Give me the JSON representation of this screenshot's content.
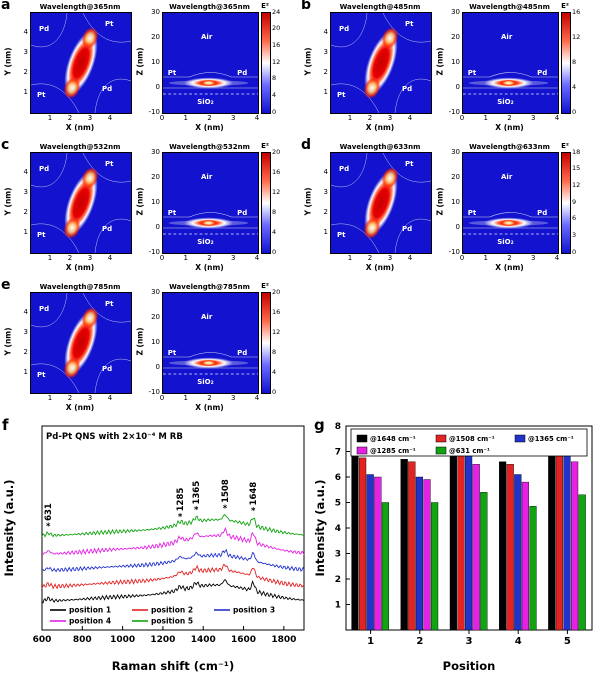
{
  "colors": {
    "field_blue": "#1212cf",
    "hot_red": "#c60000",
    "series_black": "#000000",
    "series_red": "#e32222",
    "series_blue": "#2233cc",
    "series_magenta": "#e322e3",
    "series_green": "#11a311"
  },
  "letters": {
    "f": "f",
    "g": "g"
  },
  "sim_panels": [
    {
      "letter": "a",
      "xy": {
        "title": "Wavelength@365nm",
        "xlabel": "X (nm)",
        "ylabel": "Y (nm)",
        "xticks": [
          "1",
          "2",
          "3",
          "4"
        ],
        "yticks": [
          "1",
          "2",
          "3",
          "4"
        ],
        "region_labels": {
          "tl": "Pd",
          "tr": "Pt",
          "bl": "Pt",
          "br": "Pd"
        }
      },
      "xz": {
        "title": "Wavelength@365nm",
        "xlabel": "X (nm)",
        "ylabel": "Z (nm)",
        "xticks": [
          "0",
          "1",
          "2",
          "3",
          "4"
        ],
        "yticks": [
          "30",
          "20",
          "10",
          "0",
          "-10"
        ],
        "region_labels": {
          "air": "Air",
          "left": "Pt",
          "right": "Pd",
          "substrate": "SiO₂"
        }
      },
      "colorbar": {
        "label": "E²",
        "ticks": [
          "24",
          "20",
          "16",
          "12",
          "8",
          "4",
          "0"
        ]
      }
    },
    {
      "letter": "b",
      "xy": {
        "title": "Wavelength@485nm",
        "xlabel": "X (nm)",
        "ylabel": "Y (nm)",
        "xticks": [
          "1",
          "2",
          "3",
          "4"
        ],
        "yticks": [
          "1",
          "2",
          "3",
          "4"
        ],
        "region_labels": {
          "tl": "Pd",
          "tr": "Pt",
          "bl": "Pt",
          "br": "Pd"
        }
      },
      "xz": {
        "title": "Wavelength@485nm",
        "xlabel": "X (nm)",
        "ylabel": "Z (nm)",
        "xticks": [
          "0",
          "1",
          "2",
          "3",
          "4"
        ],
        "yticks": [
          "30",
          "20",
          "10",
          "0",
          "-10"
        ],
        "region_labels": {
          "air": "Air",
          "left": "Pt",
          "right": "Pd",
          "substrate": "SiO₂"
        }
      },
      "colorbar": {
        "label": "E²",
        "ticks": [
          "16",
          "12",
          "8",
          "4",
          "0"
        ]
      }
    },
    {
      "letter": "c",
      "xy": {
        "title": "Wavelength@532nm",
        "xlabel": "X (nm)",
        "ylabel": "Y (nm)",
        "xticks": [
          "1",
          "2",
          "3",
          "4"
        ],
        "yticks": [
          "1",
          "2",
          "3",
          "4"
        ],
        "region_labels": {
          "tl": "Pd",
          "tr": "Pt",
          "bl": "Pt",
          "br": "Pd"
        }
      },
      "xz": {
        "title": "Wavelength@532nm",
        "xlabel": "X (nm)",
        "ylabel": "Z (nm)",
        "xticks": [
          "0",
          "1",
          "2",
          "3",
          "4"
        ],
        "yticks": [
          "30",
          "20",
          "10",
          "0",
          "-10"
        ],
        "region_labels": {
          "air": "Air",
          "left": "Pt",
          "right": "Pd",
          "substrate": "SiO₂"
        }
      },
      "colorbar": {
        "label": "E²",
        "ticks": [
          "20",
          "16",
          "12",
          "8",
          "4",
          "0"
        ]
      }
    },
    {
      "letter": "d",
      "xy": {
        "title": "Wavelength@633nm",
        "xlabel": "X (nm)",
        "ylabel": "Y (nm)",
        "xticks": [
          "1",
          "2",
          "3",
          "4"
        ],
        "yticks": [
          "1",
          "2",
          "3",
          "4"
        ],
        "region_labels": {
          "tl": "Pd",
          "tr": "Pt",
          "bl": "Pt",
          "br": "Pd"
        }
      },
      "xz": {
        "title": "Wavelength@633nm",
        "xlabel": "X (nm)",
        "ylabel": "Z (nm)",
        "xticks": [
          "0",
          "1",
          "2",
          "3",
          "4"
        ],
        "yticks": [
          "30",
          "20",
          "10",
          "0",
          "-10"
        ],
        "region_labels": {
          "air": "Air",
          "left": "Pt",
          "right": "Pd",
          "substrate": "SiO₂"
        }
      },
      "colorbar": {
        "label": "E²",
        "ticks": [
          "18",
          "15",
          "12",
          "9",
          "6",
          "3",
          "0"
        ]
      }
    },
    {
      "letter": "e",
      "xy": {
        "title": "Wavelength@785nm",
        "xlabel": "X (nm)",
        "ylabel": "Y (nm)",
        "xticks": [
          "1",
          "2",
          "3",
          "4"
        ],
        "yticks": [
          "1",
          "2",
          "3",
          "4"
        ],
        "region_labels": {
          "tl": "Pd",
          "tr": "Pt",
          "bl": "Pt",
          "br": "Pd"
        }
      },
      "xz": {
        "title": "Wavelength@785nm",
        "xlabel": "X (nm)",
        "ylabel": "Z (nm)",
        "xticks": [
          "0",
          "1",
          "2",
          "3",
          "4"
        ],
        "yticks": [
          "30",
          "20",
          "10",
          "0",
          "-10"
        ],
        "region_labels": {
          "air": "Air",
          "left": "Pt",
          "right": "Pd",
          "substrate": "SiO₂"
        }
      },
      "colorbar": {
        "label": "E²",
        "ticks": [
          "20",
          "16",
          "12",
          "8",
          "4",
          "0"
        ]
      }
    }
  ],
  "chart_data": [
    {
      "type": "line",
      "title": "Pd-Pt QNS with 2×10⁻⁴ M RB",
      "xlabel": "Raman shift (cm⁻¹)",
      "ylabel": "Intensity (a.u.)",
      "xlim": [
        600,
        1900
      ],
      "xticks": [
        600,
        800,
        1000,
        1200,
        1400,
        1600,
        1800
      ],
      "peak_positions": [
        631,
        1285,
        1365,
        1508,
        1648
      ],
      "peak_labels": [
        "631",
        "1285",
        "1365",
        "1508",
        "1648"
      ],
      "legend_position": "bottom-left",
      "series": [
        {
          "name": "position 1",
          "color": "#000000",
          "offset": 0.14,
          "scale": 1.0
        },
        {
          "name": "position 2",
          "color": "#e32222",
          "offset": 0.21,
          "scale": 1.05
        },
        {
          "name": "position 3",
          "color": "#2233cc",
          "offset": 0.29,
          "scale": 0.95
        },
        {
          "name": "position 4",
          "color": "#e322e3",
          "offset": 0.37,
          "scale": 1.15
        },
        {
          "name": "position 5",
          "color": "#11a311",
          "offset": 0.46,
          "scale": 1.0
        }
      ]
    },
    {
      "type": "bar",
      "title": "",
      "xlabel": "Position",
      "ylabel": "Intensity (a.u.)",
      "categories": [
        "1",
        "2",
        "3",
        "4",
        "5"
      ],
      "ylim": [
        0,
        8
      ],
      "yticks": [
        1,
        2,
        3,
        4,
        5,
        6,
        7,
        8
      ],
      "legend_position": "top",
      "series": [
        {
          "name": "@1648 cm⁻¹",
          "color": "#000000",
          "values": [
            6.9,
            6.7,
            7.4,
            6.6,
            7.5
          ]
        },
        {
          "name": "@1508 cm⁻¹",
          "color": "#e32222",
          "values": [
            6.75,
            6.6,
            7.2,
            6.5,
            7.3
          ]
        },
        {
          "name": "@1365 cm⁻¹",
          "color": "#2233cc",
          "values": [
            6.1,
            6.0,
            6.9,
            6.1,
            7.0
          ]
        },
        {
          "name": "@1285 cm⁻¹",
          "color": "#e322e3",
          "values": [
            6.0,
            5.9,
            6.5,
            5.8,
            6.6
          ]
        },
        {
          "name": "@631 cm⁻¹",
          "color": "#11a311",
          "values": [
            5.0,
            5.0,
            5.4,
            4.85,
            5.3
          ]
        }
      ]
    }
  ]
}
